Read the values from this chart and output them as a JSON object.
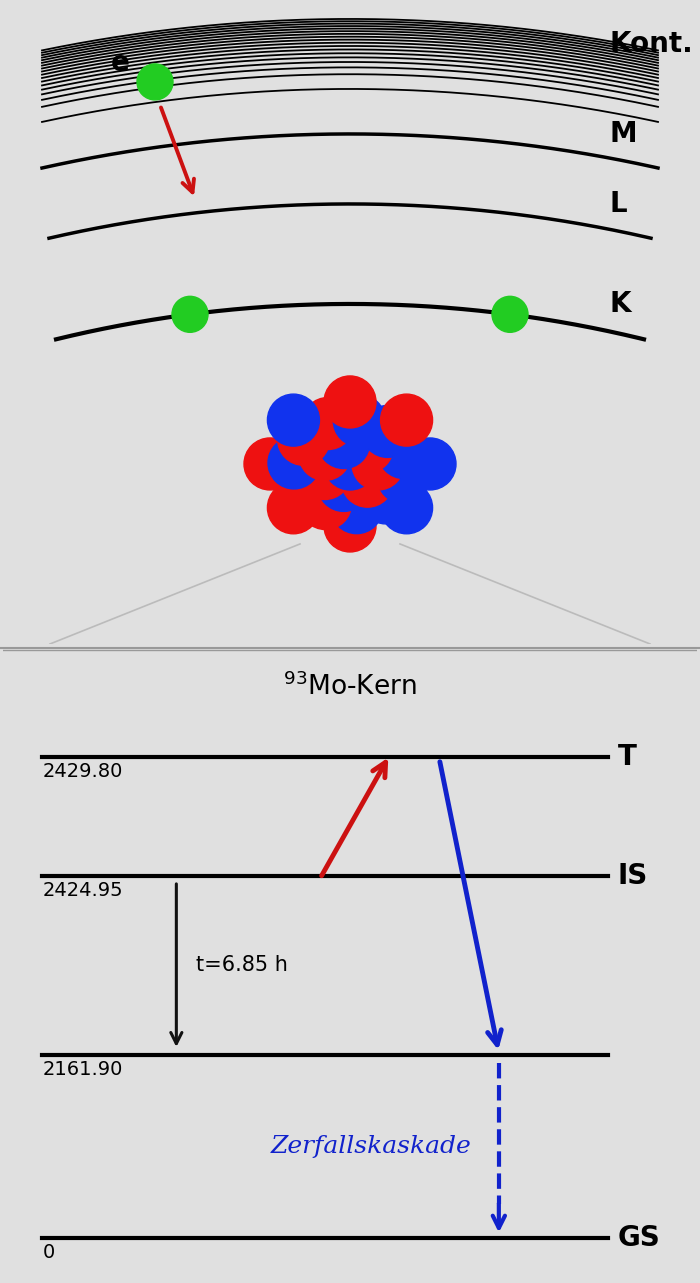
{
  "bg_color": "#e0e0e0",
  "fig_width": 7.0,
  "fig_height": 12.83,
  "proton_color": "#ee1111",
  "neutron_color": "#1133ee",
  "shell_label_color": "#111111",
  "electron_color": "#22cc22",
  "electron_label": "e",
  "energy_labels": [
    "0",
    "2161.90",
    "2424.95",
    "2429.80"
  ],
  "level_names": [
    "GS",
    "",
    "IS",
    "T"
  ],
  "mo_kern_label": "$^{93}$Mo-Kern",
  "zerfallskaskade_label": "Zerfallskaskade",
  "t_label": "t=6.85 h",
  "arrow_red_color": "#cc1111",
  "arrow_blue_color": "#1122cc",
  "arrow_black_color": "#111111"
}
